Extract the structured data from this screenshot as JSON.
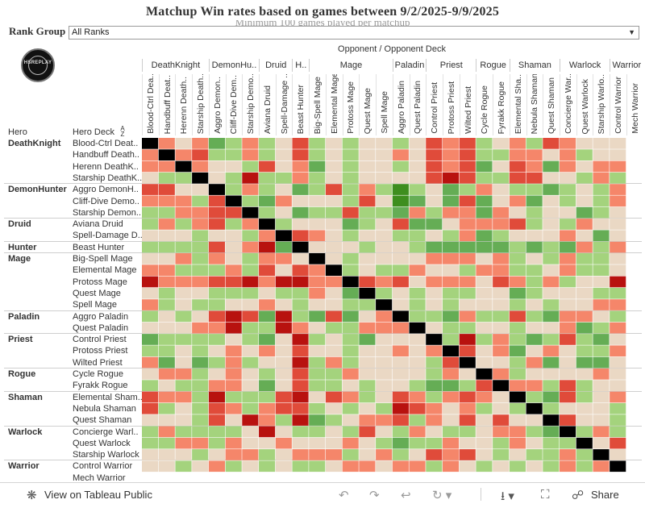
{
  "title": "Matchup Win rates based on games between 9/2/2025-9/9/2025",
  "title_shadow": "Minimum 100 games played per matchup",
  "filter": {
    "label": "Rank Group",
    "value": "All Ranks"
  },
  "logo": {
    "text": "HSREPLAY"
  },
  "col_header": {
    "opponent": "Opponent",
    "slash": "/",
    "opponent_deck": "Opponent Deck"
  },
  "row_header": {
    "hero": "Hero",
    "hero_deck": "Hero Deck",
    "sort_icon": "A Z"
  },
  "colors": {
    "strong_win": "#3e8e1e",
    "win": "#65ad55",
    "light_win": "#a4d37d",
    "neutral": "#ead8c4",
    "light_loss": "#f5866a",
    "loss": "#e04b3a",
    "strong_loss": "#b8120f",
    "mirror": "#000000"
  },
  "chart_data": {
    "type": "heatmap",
    "title": "Matchup Win rates based on games between 9/2/2025-9/9/2025",
    "value_scale": "win-rate level from -3 (strong loss) to 3 (strong win); 0 = even / no data; 9 = mirror",
    "groups": [
      {
        "class": "DeathKnight",
        "decks": [
          "Blood-Ctrl Deat..",
          "Handbuff Death..",
          "Herenn DeathK..",
          "Starship DeathK.."
        ],
        "col_labels": [
          "Blood-Ctrl Dea..",
          "Handbuff Deat..",
          "Herenn Death..",
          "Starship Death.."
        ]
      },
      {
        "class": "DemonHunter",
        "col_class": "DemonHu..",
        "decks": [
          "Aggro DemonH..",
          "Cliff-Dive Demo..",
          "Starship Demon.."
        ],
        "col_labels": [
          "Aggro Demon..",
          "Cliff-Dive Dem..",
          "Starship Demo.."
        ]
      },
      {
        "class": "Druid",
        "decks": [
          "Aviana Druid",
          "Spell-Damage D.."
        ],
        "col_labels": [
          "Aviana Druid",
          "Spell-Damage .."
        ]
      },
      {
        "class": "Hunter",
        "col_class": "H..",
        "decks": [
          "Beast Hunter"
        ],
        "col_labels": [
          "Beast Hunter"
        ]
      },
      {
        "class": "Mage",
        "decks": [
          "Big-Spell Mage",
          "Elemental Mage",
          "Protoss Mage",
          "Quest Mage",
          "Spell Mage"
        ],
        "col_labels": [
          "Big-Spell Mage",
          "Elemental Mage",
          "Protoss Mage",
          "Quest Mage",
          "Spell Mage"
        ]
      },
      {
        "class": "Paladin",
        "decks": [
          "Aggro Paladin",
          "Quest Paladin"
        ],
        "col_labels": [
          "Aggro Paladin",
          "Quest Paladin"
        ]
      },
      {
        "class": "Priest",
        "decks": [
          "Control Priest",
          "Protoss Priest",
          "Wilted Priest"
        ],
        "col_labels": [
          "Control Priest",
          "Protoss Priest",
          "Wilted Priest"
        ]
      },
      {
        "class": "Rogue",
        "decks": [
          "Cycle Rogue",
          "Fyrakk Rogue"
        ],
        "col_labels": [
          "Cycle Rogue",
          "Fyrakk Rogue"
        ]
      },
      {
        "class": "Shaman",
        "decks": [
          "Elemental Sham..",
          "Nebula Shaman",
          "Quest Shaman"
        ],
        "col_labels": [
          "Elemental Sha..",
          "Nebula Shaman",
          "Quest Shaman"
        ]
      },
      {
        "class": "Warlock",
        "decks": [
          "Concierge Warl..",
          "Quest Warlock",
          "Starship Warlock"
        ],
        "col_labels": [
          "Concierge War..",
          "Quest Warlock",
          "Starship Warlo.."
        ]
      },
      {
        "class": "Warrior",
        "decks": [
          "Control Warrior",
          "Mech Warrior"
        ],
        "col_labels": [
          "Control Warrior",
          "Mech Warrior"
        ]
      }
    ],
    "matrix": [
      [
        9,
        -1,
        0,
        -1,
        2,
        1,
        -1,
        1,
        0,
        -2,
        1,
        0,
        1,
        0,
        0,
        1,
        0,
        -2,
        -1,
        -2,
        1,
        0,
        -1,
        1,
        -2,
        -1,
        0,
        0,
        0
      ],
      [
        -1,
        9,
        -1,
        -2,
        1,
        1,
        -1,
        1,
        0,
        -2,
        1,
        0,
        1,
        0,
        0,
        -1,
        0,
        -2,
        -1,
        -2,
        1,
        1,
        -1,
        -1,
        0,
        -1,
        1,
        0,
        0
      ],
      [
        -1,
        -1,
        9,
        -1,
        0,
        0,
        1,
        -2,
        0,
        -1,
        2,
        0,
        1,
        0,
        0,
        1,
        0,
        -2,
        -1,
        -2,
        2,
        0,
        -2,
        -1,
        2,
        -1,
        0,
        -1,
        -1
      ],
      [
        0,
        1,
        1,
        9,
        0,
        1,
        -3,
        1,
        1,
        -1,
        1,
        0,
        1,
        0,
        0,
        0,
        0,
        -2,
        -3,
        -2,
        1,
        1,
        -2,
        -2,
        0,
        0,
        1,
        -1,
        1
      ],
      [
        -2,
        -2,
        0,
        0,
        9,
        1,
        -1,
        1,
        0,
        2,
        1,
        -2,
        1,
        -1,
        1,
        3,
        1,
        0,
        2,
        1,
        -1,
        0,
        1,
        1,
        2,
        1,
        0,
        1,
        -1
      ],
      [
        -1,
        -1,
        -1,
        1,
        -2,
        9,
        1,
        2,
        -1,
        0,
        0,
        0,
        1,
        -2,
        0,
        3,
        2,
        0,
        2,
        -2,
        2,
        0,
        -1,
        2,
        0,
        1,
        0,
        1,
        -1
      ],
      [
        1,
        1,
        -1,
        -1,
        -2,
        -2,
        9,
        1,
        0,
        2,
        1,
        1,
        -2,
        1,
        1,
        2,
        -1,
        1,
        -1,
        -1,
        2,
        -1,
        0,
        1,
        0,
        0,
        2,
        1,
        0
      ],
      [
        1,
        -1,
        1,
        -1,
        -2,
        1,
        -1,
        9,
        1,
        0,
        0,
        0,
        2,
        1,
        0,
        -2,
        2,
        2,
        0,
        -1,
        -1,
        -1,
        -2,
        1,
        0,
        1,
        -1,
        0,
        0
      ],
      [
        0,
        0,
        0,
        1,
        0,
        0,
        1,
        -1,
        9,
        -2,
        -1,
        0,
        1,
        0,
        0,
        1,
        1,
        0,
        1,
        -1,
        2,
        1,
        0,
        0,
        0,
        -1,
        0,
        2,
        0
      ],
      [
        1,
        1,
        1,
        1,
        -2,
        0,
        -1,
        -3,
        2,
        9,
        0,
        0,
        0,
        1,
        0,
        0,
        1,
        2,
        2,
        2,
        2,
        2,
        1,
        2,
        1,
        2,
        -1,
        1,
        -1
      ],
      [
        0,
        0,
        -1,
        1,
        -1,
        0,
        1,
        -1,
        -1,
        0,
        9,
        0,
        1,
        0,
        0,
        0,
        0,
        -1,
        -1,
        -1,
        0,
        -1,
        1,
        0,
        1,
        -1,
        1,
        1,
        0
      ],
      [
        -1,
        -1,
        1,
        1,
        1,
        -1,
        1,
        -2,
        0,
        -2,
        -1,
        9,
        1,
        0,
        1,
        1,
        -1,
        0,
        0,
        1,
        -1,
        -1,
        1,
        1,
        0,
        -1,
        1,
        1,
        0
      ],
      [
        -3,
        -1,
        -1,
        -1,
        -2,
        -2,
        -3,
        -1,
        -3,
        -3,
        -1,
        -1,
        9,
        -2,
        -1,
        -2,
        0,
        -1,
        -1,
        -1,
        0,
        -2,
        -1,
        1,
        -1,
        1,
        0,
        0,
        -3
      ],
      [
        0,
        1,
        0,
        0,
        1,
        1,
        1,
        0,
        1,
        1,
        -1,
        0,
        2,
        9,
        1,
        0,
        1,
        0,
        1,
        1,
        0,
        0,
        2,
        1,
        0,
        0,
        0,
        1,
        1
      ],
      [
        -1,
        1,
        0,
        1,
        1,
        0,
        0,
        -1,
        0,
        1,
        0,
        0,
        1,
        1,
        9,
        0,
        1,
        0,
        1,
        0,
        0,
        0,
        1,
        0,
        1,
        0,
        0,
        -1,
        -1
      ],
      [
        1,
        0,
        1,
        0,
        -2,
        -3,
        -2,
        2,
        -3,
        1,
        2,
        -2,
        2,
        0,
        -1,
        9,
        1,
        1,
        2,
        -1,
        1,
        1,
        -2,
        1,
        2,
        -1,
        -1,
        0,
        1
      ],
      [
        0,
        0,
        0,
        -1,
        -1,
        -3,
        1,
        1,
        -3,
        -1,
        0,
        1,
        1,
        -1,
        -1,
        -1,
        9,
        0,
        1,
        1,
        0,
        0,
        1,
        0,
        0,
        -1,
        2,
        1,
        -1
      ],
      [
        2,
        1,
        1,
        1,
        1,
        0,
        1,
        2,
        0,
        -3,
        1,
        0,
        1,
        2,
        0,
        0,
        0,
        9,
        1,
        -3,
        1,
        -1,
        1,
        2,
        1,
        -2,
        1,
        2,
        0
      ],
      [
        1,
        1,
        0,
        1,
        0,
        -1,
        0,
        -1,
        0,
        -2,
        0,
        0,
        1,
        0,
        0,
        -1,
        0,
        -1,
        9,
        -2,
        0,
        -1,
        2,
        0,
        -1,
        0,
        1,
        1,
        -1
      ],
      [
        -1,
        2,
        0,
        2,
        1,
        -1,
        1,
        0,
        0,
        -3,
        1,
        -1,
        1,
        0,
        0,
        0,
        0,
        1,
        -2,
        9,
        0,
        0,
        1,
        -1,
        2,
        0,
        2,
        2,
        0
      ],
      [
        0,
        -1,
        -1,
        1,
        0,
        -1,
        0,
        1,
        0,
        -2,
        1,
        1,
        -1,
        0,
        0,
        0,
        0,
        1,
        -1,
        0,
        9,
        -1,
        1,
        0,
        0,
        0,
        0,
        -1,
        0
      ],
      [
        1,
        0,
        1,
        1,
        -1,
        -1,
        0,
        2,
        0,
        -2,
        1,
        1,
        0,
        1,
        0,
        0,
        1,
        2,
        2,
        1,
        -2,
        9,
        -1,
        -1,
        1,
        -2,
        1,
        0,
        0
      ],
      [
        -2,
        -1,
        -1,
        1,
        -3,
        1,
        1,
        1,
        -2,
        -3,
        0,
        -2,
        -1,
        1,
        0,
        -2,
        -1,
        1,
        -1,
        -2,
        -1,
        0,
        9,
        1,
        2,
        -2,
        1,
        0,
        -1
      ],
      [
        -2,
        1,
        0,
        1,
        -2,
        -1,
        1,
        -1,
        -2,
        -2,
        1,
        0,
        1,
        0,
        1,
        -3,
        -2,
        -1,
        0,
        -1,
        1,
        0,
        1,
        9,
        1,
        0,
        0,
        0,
        1
      ],
      [
        0,
        0,
        0,
        1,
        -2,
        0,
        -3,
        -1,
        1,
        -3,
        2,
        1,
        0,
        -1,
        -1,
        -2,
        1,
        -1,
        0,
        -2,
        0,
        -2,
        0,
        0,
        9,
        -2,
        0,
        0,
        1
      ],
      [
        1,
        -1,
        1,
        1,
        1,
        1,
        0,
        -3,
        0,
        1,
        1,
        0,
        1,
        -2,
        0,
        1,
        -1,
        0,
        1,
        1,
        0,
        -1,
        -1,
        1,
        2,
        9,
        1,
        -1,
        1
      ],
      [
        1,
        1,
        -1,
        -1,
        1,
        -1,
        0,
        0,
        -1,
        0,
        0,
        0,
        -1,
        0,
        1,
        2,
        1,
        1,
        -1,
        0,
        0,
        1,
        -1,
        0,
        1,
        1,
        9,
        0,
        -2
      ],
      [
        0,
        0,
        0,
        1,
        0,
        -1,
        -1,
        1,
        0,
        -1,
        -1,
        -1,
        1,
        0,
        -1,
        1,
        0,
        -2,
        -1,
        -2,
        0,
        1,
        0,
        1,
        1,
        -1,
        1,
        9,
        0
      ],
      [
        0,
        0,
        1,
        0,
        -1,
        1,
        0,
        1,
        0,
        1,
        1,
        0,
        -1,
        -1,
        0,
        -1,
        -1,
        1,
        -1,
        0,
        1,
        0,
        1,
        0,
        1,
        -1,
        1,
        -1,
        9
      ]
    ]
  },
  "toolbar": {
    "view_label": "View on Tableau Public",
    "share_label": "Share"
  }
}
